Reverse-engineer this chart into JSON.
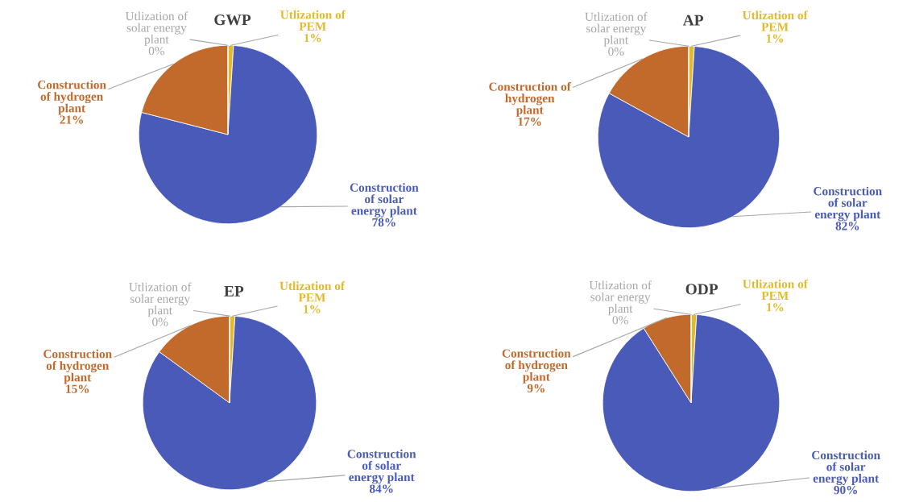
{
  "chart_data": [
    {
      "type": "pie",
      "title": "GWP",
      "categories": [
        "Utlization of\nPEM",
        "Construction\nof solar\nenergy plant",
        "Construction\nof hydrogen\nplant",
        "Utlization of\nsolar energy\nplant"
      ],
      "values": [
        1,
        78,
        21,
        0
      ],
      "colors": [
        "#e3bb2a",
        "#4a5ab8",
        "#c26a2c",
        "#a6a6a6"
      ],
      "value_labels": [
        "1%",
        "78%",
        "21%",
        "0%"
      ]
    },
    {
      "type": "pie",
      "title": "AP",
      "categories": [
        "Utlization of\nPEM",
        "Construction\nof solar\nenergy plant",
        "Construction of\nhydrogen\nplant",
        "Utlization of\nsolar energy\nplant"
      ],
      "values": [
        1,
        82,
        17,
        0
      ],
      "colors": [
        "#e3bb2a",
        "#4a5ab8",
        "#c26a2c",
        "#a6a6a6"
      ],
      "value_labels": [
        "1%",
        "82%",
        "17%",
        "0%"
      ]
    },
    {
      "type": "pie",
      "title": "EP",
      "categories": [
        "Utlization of\nPEM",
        "Construction\nof solar\nenergy plant",
        "Construction\nof hydrogen\nplant",
        "Utlization of\nsolar energy\nplant"
      ],
      "values": [
        1,
        84,
        15,
        0
      ],
      "colors": [
        "#e3bb2a",
        "#4a5ab8",
        "#c26a2c",
        "#a6a6a6"
      ],
      "value_labels": [
        "1%",
        "84%",
        "15%",
        "0%"
      ]
    },
    {
      "type": "pie",
      "title": "ODP",
      "categories": [
        "Utlization of\nPEM",
        "Construction\nof solar\nenergy plant",
        "Construction\nof hydrogen\nplant",
        "Utlization of\nsolar energy\nplant"
      ],
      "values": [
        1,
        90,
        9,
        0
      ],
      "colors": [
        "#e3bb2a",
        "#4a5ab8",
        "#c26a2c",
        "#a6a6a6"
      ],
      "value_labels": [
        "1%",
        "90%",
        "9%",
        "0%"
      ]
    }
  ]
}
